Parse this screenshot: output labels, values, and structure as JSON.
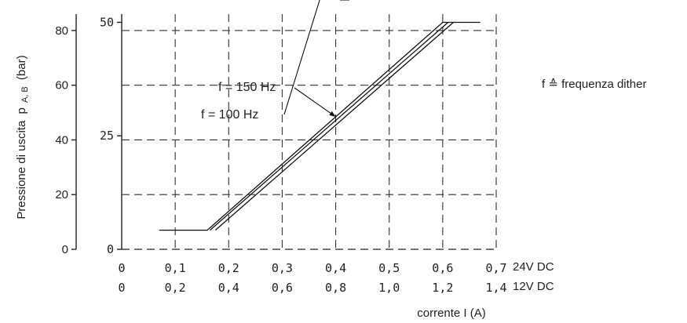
{
  "chart_data": {
    "type": "line",
    "ylabel_main": "Pressione di uscita",
    "ylabel_sym": "p",
    "ylabel_sub": "A, B",
    "ylabel_unit": "(bar)",
    "xlabel": "corrente I (A)",
    "note": "f ≙ frequenza dither",
    "y_outer": {
      "ticks": [
        "80",
        "60",
        "40",
        "20",
        "0"
      ],
      "values": [
        80,
        60,
        40,
        20,
        0
      ],
      "ylim": [
        0,
        86
      ]
    },
    "y_inner": {
      "ticks": [
        "50",
        "25",
        "0"
      ],
      "values": [
        50,
        25,
        0
      ]
    },
    "x_24": {
      "label": "24V DC",
      "ticks": [
        "0",
        "0,1",
        "0,2",
        "0,3",
        "0,4",
        "0,5",
        "0,6",
        "0,7"
      ],
      "values": [
        0,
        0.1,
        0.2,
        0.3,
        0.4,
        0.5,
        0.6,
        0.7
      ]
    },
    "x_12": {
      "label": "12V DC",
      "ticks": [
        "0",
        "0,2",
        "0,4",
        "0,6",
        "0,8",
        "1,0",
        "1,2",
        "1,4"
      ]
    },
    "xlim": [
      0,
      0.7
    ],
    "grid": "dashed",
    "series": [
      {
        "name": "f = 150 Hz",
        "x": [
          0.07,
          0.16,
          0.6,
          0.67
        ],
        "y": [
          7,
          7,
          83,
          83
        ]
      },
      {
        "x": [
          0.165,
          0.61
        ],
        "y": [
          7,
          83
        ]
      },
      {
        "name": "f = 100 Hz",
        "x": [
          0.175,
          0.62
        ],
        "y": [
          7,
          83
        ]
      }
    ]
  }
}
